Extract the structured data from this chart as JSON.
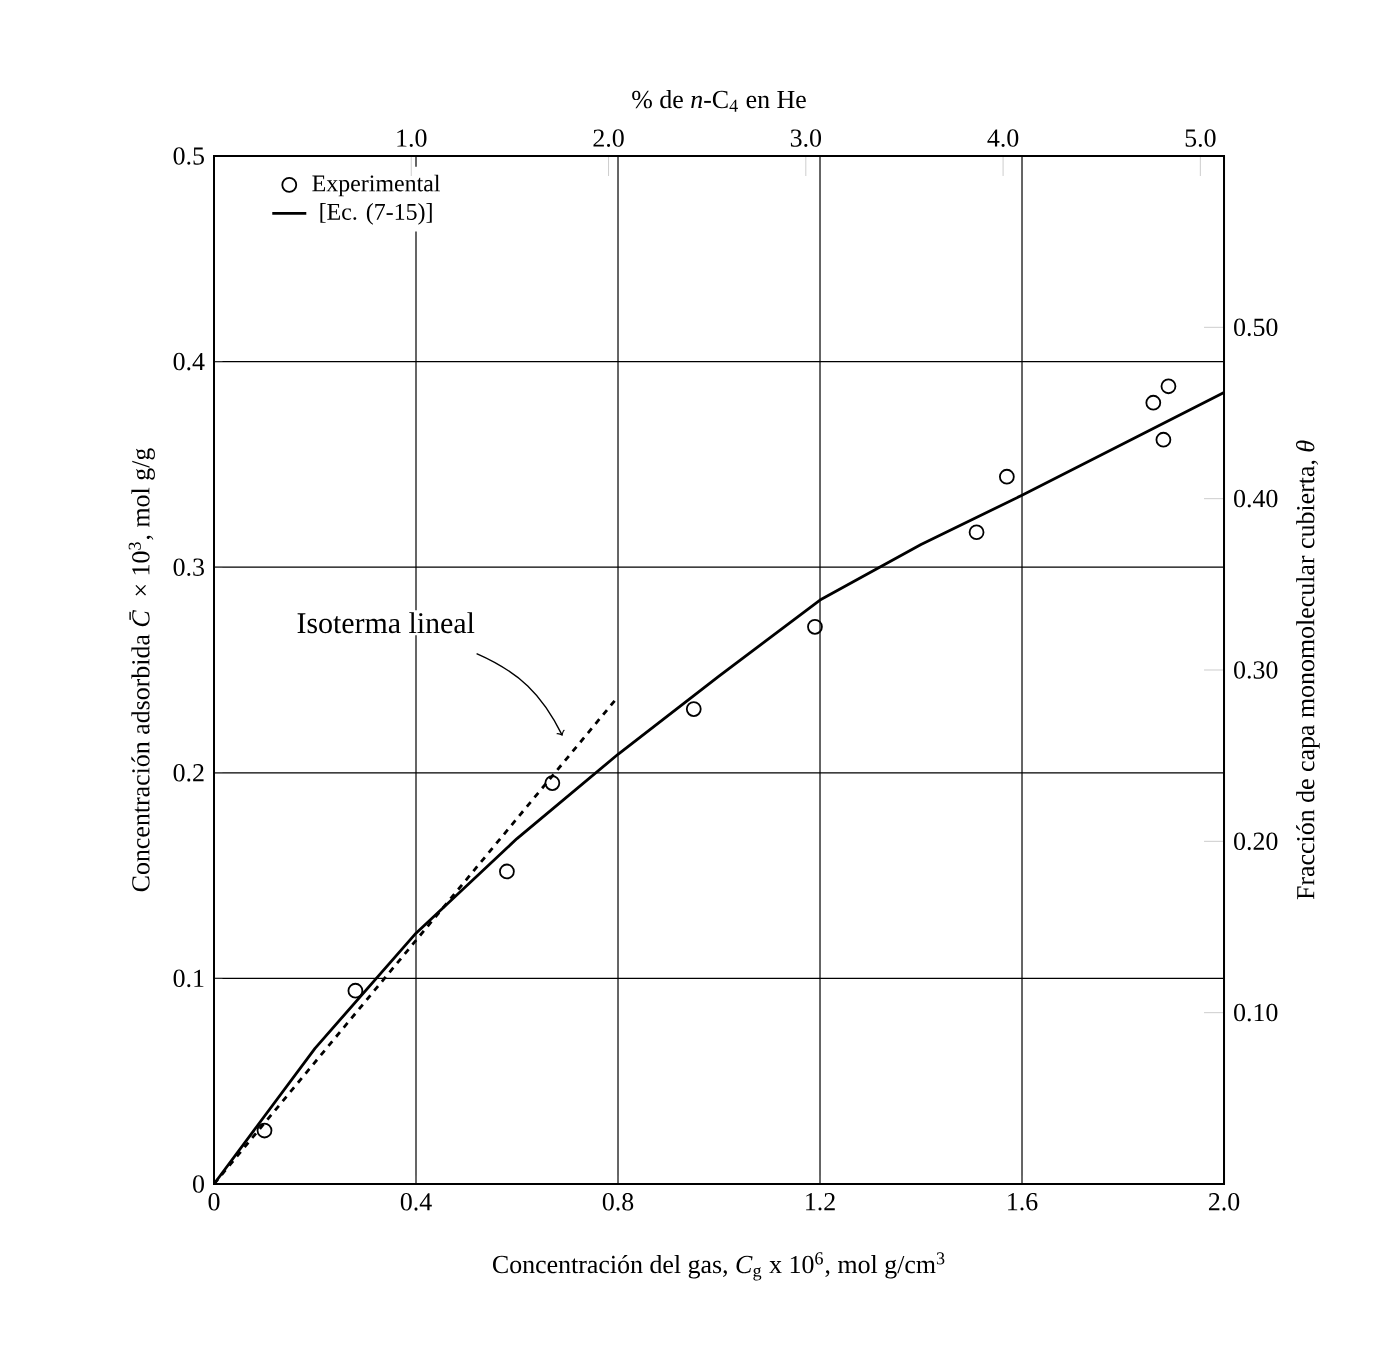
{
  "chart_data": {
    "type": "line",
    "xlabel": "Concentración del gas, *C*$_{g}$ x 10$^{6}$, mol g/cm$^{3}$",
    "ylabel": "Concentración adsorbida *C̄* × 10$^{3}$, mol g/g",
    "x2label": "% de *n*-C$_{4}$ en He",
    "y2label": "Fracción de capa monomolecular cubierta, *θ*",
    "xlim": [
      0,
      2.0
    ],
    "ylim": [
      0,
      0.5
    ],
    "x2lim": [
      0,
      5.12
    ],
    "y2lim": [
      0,
      0.6
    ],
    "xticks": [
      0,
      0.4,
      0.8,
      1.2,
      1.6,
      {
        "value": 2.0,
        "label": "2.0"
      }
    ],
    "yticks": [
      0,
      0.1,
      0.2,
      0.3,
      0.4,
      0.5
    ],
    "x2ticks": [
      {
        "value": 1,
        "label": "1.0"
      },
      {
        "value": 2,
        "label": "2.0"
      },
      {
        "value": 3,
        "label": "3.0"
      },
      {
        "value": 4,
        "label": "4.0"
      },
      {
        "value": 5,
        "label": "5.0"
      }
    ],
    "y2ticks": [
      {
        "value": 0.1,
        "label": "0.10"
      },
      {
        "value": 0.2,
        "label": "0.20"
      },
      {
        "value": 0.3,
        "label": "0.30"
      },
      {
        "value": 0.4,
        "label": "0.40"
      },
      {
        "value": 0.5,
        "label": "0.50"
      }
    ],
    "grid": true,
    "legend": "top left",
    "series": [
      {
        "name": "Experimental",
        "type": "scatter",
        "marker": "circle",
        "color": "#000000",
        "x": [
          0.1,
          0.28,
          0.58,
          0.67,
          0.95,
          1.19,
          1.51,
          1.57,
          1.86,
          1.88,
          1.89
        ],
        "values": [
          0.026,
          0.094,
          0.152,
          0.195,
          0.231,
          0.271,
          0.317,
          0.344,
          0.38,
          0.362,
          0.388
        ]
      },
      {
        "name": "[Ec. (7-15)]",
        "color": "#000000",
        "x": [
          0,
          0.2,
          0.4,
          0.6,
          0.8,
          1.0,
          1.2,
          1.4,
          1.6,
          1.8,
          2.0
        ],
        "values": [
          0,
          0.066,
          0.122,
          0.168,
          0.209,
          0.247,
          0.284,
          0.311,
          0.335,
          0.36,
          0.385
        ]
      },
      {
        "type": "line",
        "line_style": "dashed",
        "color": "#000000",
        "x": [
          0,
          0.8
        ],
        "values": [
          0,
          0.237
        ]
      }
    ],
    "annotations": [
      {
        "text": "Isoterma lineal",
        "x": 0.69,
        "y": 0.218
      }
    ]
  }
}
